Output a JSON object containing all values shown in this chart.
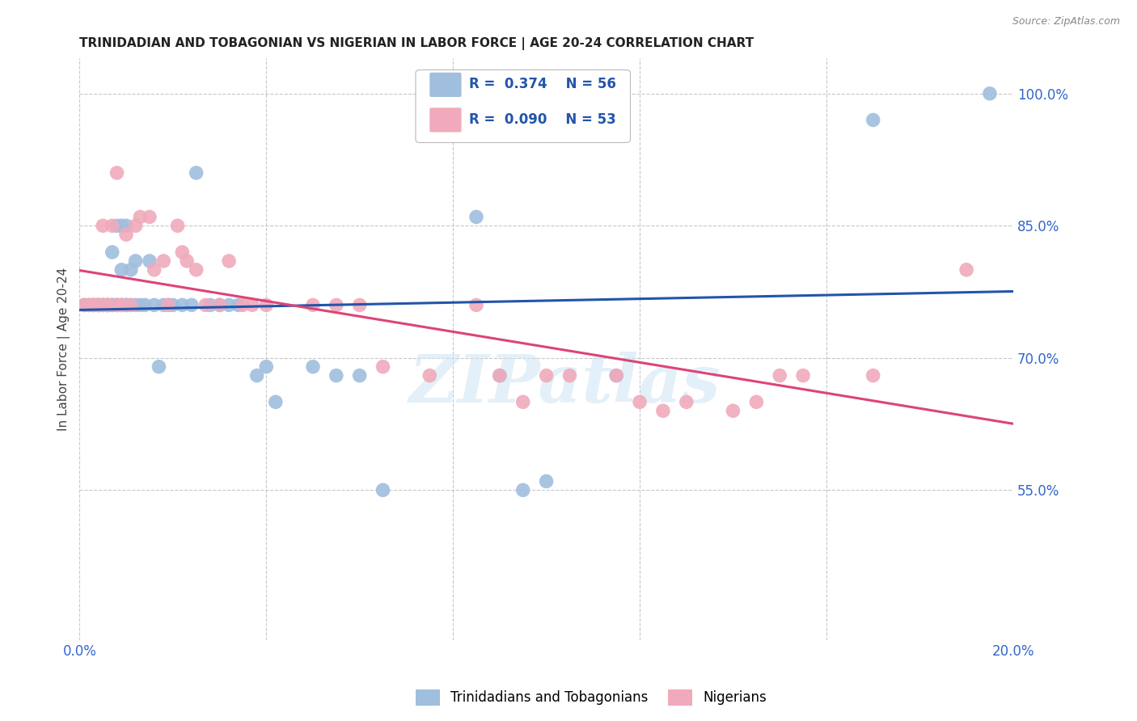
{
  "title": "TRINIDADIAN AND TOBAGONIAN VS NIGERIAN IN LABOR FORCE | AGE 20-24 CORRELATION CHART",
  "source": "Source: ZipAtlas.com",
  "ylabel": "In Labor Force | Age 20-24",
  "xlim": [
    0.0,
    0.2
  ],
  "ylim": [
    0.38,
    1.04
  ],
  "xticks": [
    0.0,
    0.04,
    0.08,
    0.12,
    0.16,
    0.2
  ],
  "xticklabels": [
    "0.0%",
    "",
    "",
    "",
    "",
    "20.0%"
  ],
  "yticks_right": [
    0.55,
    0.7,
    0.85,
    1.0
  ],
  "ytick_labels_right": [
    "55.0%",
    "70.0%",
    "85.0%",
    "100.0%"
  ],
  "grid_color": "#c8c8c8",
  "background_color": "#ffffff",
  "blue_color": "#a0bede",
  "pink_color": "#f0aabb",
  "blue_line_color": "#2255aa",
  "pink_line_color": "#dd4477",
  "tick_label_color": "#3366cc",
  "legend_R_blue": "0.374",
  "legend_N_blue": "56",
  "legend_R_pink": "0.090",
  "legend_N_pink": "53",
  "legend_label_blue": "Trinidadians and Tobagonians",
  "legend_label_pink": "Nigerians",
  "watermark": "ZIPatlas",
  "blue_x": [
    0.001,
    0.002,
    0.003,
    0.003,
    0.004,
    0.004,
    0.005,
    0.005,
    0.006,
    0.006,
    0.006,
    0.007,
    0.007,
    0.007,
    0.008,
    0.008,
    0.008,
    0.009,
    0.009,
    0.009,
    0.01,
    0.01,
    0.01,
    0.011,
    0.011,
    0.012,
    0.012,
    0.013,
    0.014,
    0.015,
    0.016,
    0.017,
    0.018,
    0.019,
    0.02,
    0.022,
    0.024,
    0.025,
    0.028,
    0.03,
    0.032,
    0.034,
    0.038,
    0.04,
    0.042,
    0.05,
    0.055,
    0.06,
    0.065,
    0.085,
    0.09,
    0.095,
    0.1,
    0.115,
    0.17,
    0.195
  ],
  "blue_y": [
    0.76,
    0.76,
    0.76,
    0.76,
    0.76,
    0.76,
    0.76,
    0.76,
    0.76,
    0.76,
    0.76,
    0.76,
    0.82,
    0.76,
    0.76,
    0.85,
    0.76,
    0.76,
    0.85,
    0.8,
    0.76,
    0.76,
    0.85,
    0.76,
    0.8,
    0.81,
    0.76,
    0.76,
    0.76,
    0.81,
    0.76,
    0.69,
    0.76,
    0.76,
    0.76,
    0.76,
    0.76,
    0.91,
    0.76,
    0.76,
    0.76,
    0.76,
    0.68,
    0.69,
    0.65,
    0.69,
    0.68,
    0.68,
    0.55,
    0.86,
    0.68,
    0.55,
    0.56,
    0.68,
    0.97,
    1.0
  ],
  "pink_x": [
    0.001,
    0.002,
    0.003,
    0.003,
    0.004,
    0.004,
    0.005,
    0.005,
    0.006,
    0.006,
    0.007,
    0.008,
    0.008,
    0.009,
    0.009,
    0.01,
    0.011,
    0.012,
    0.013,
    0.015,
    0.016,
    0.018,
    0.019,
    0.021,
    0.022,
    0.023,
    0.025,
    0.027,
    0.03,
    0.032,
    0.035,
    0.037,
    0.04,
    0.05,
    0.055,
    0.06,
    0.065,
    0.075,
    0.085,
    0.09,
    0.095,
    0.1,
    0.105,
    0.115,
    0.12,
    0.125,
    0.13,
    0.14,
    0.145,
    0.15,
    0.155,
    0.17,
    0.19
  ],
  "pink_y": [
    0.76,
    0.76,
    0.76,
    0.76,
    0.76,
    0.76,
    0.76,
    0.85,
    0.76,
    0.76,
    0.85,
    0.76,
    0.91,
    0.76,
    0.76,
    0.84,
    0.76,
    0.85,
    0.86,
    0.86,
    0.8,
    0.81,
    0.76,
    0.85,
    0.82,
    0.81,
    0.8,
    0.76,
    0.76,
    0.81,
    0.76,
    0.76,
    0.76,
    0.76,
    0.76,
    0.76,
    0.69,
    0.68,
    0.76,
    0.68,
    0.65,
    0.68,
    0.68,
    0.68,
    0.65,
    0.64,
    0.65,
    0.64,
    0.65,
    0.68,
    0.68,
    0.68,
    0.8
  ]
}
